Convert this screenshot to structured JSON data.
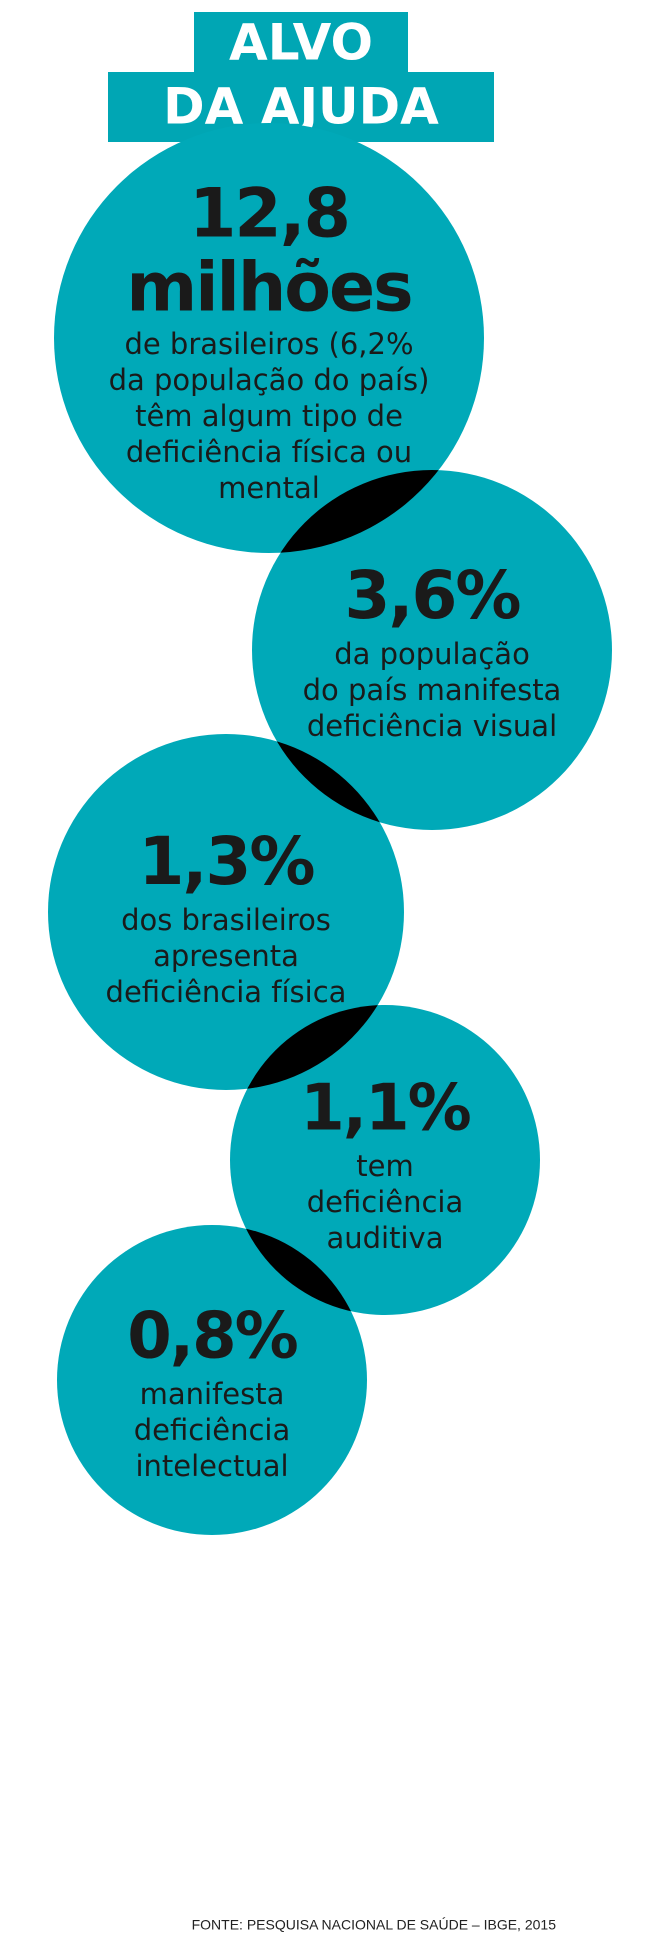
{
  "title": [
    "ALVO",
    "DA AJUDA"
  ],
  "circles": [
    {
      "headline": [
        "12,8",
        "milhões"
      ],
      "text": [
        "de brasileiros (6,2%",
        "da população do país)",
        "têm algum tipo de",
        "deficiência física ou",
        "mental"
      ]
    },
    {
      "headline": [
        "3,6%"
      ],
      "text": [
        "da população",
        "do país manifesta",
        "deficiência visual"
      ]
    },
    {
      "headline": [
        "1,3%"
      ],
      "text": [
        "dos brasileiros",
        "apresenta",
        "deficiência física"
      ]
    },
    {
      "headline": [
        "1,1%"
      ],
      "text": [
        "tem",
        "deficiência",
        "auditiva"
      ]
    },
    {
      "headline": [
        "0,8%"
      ],
      "text": [
        "manifesta",
        "deficiência",
        "intelectual"
      ]
    }
  ],
  "source": "FONTE: PESQUISA NACIONAL DE SAÚDE – IBGE, 2015"
}
